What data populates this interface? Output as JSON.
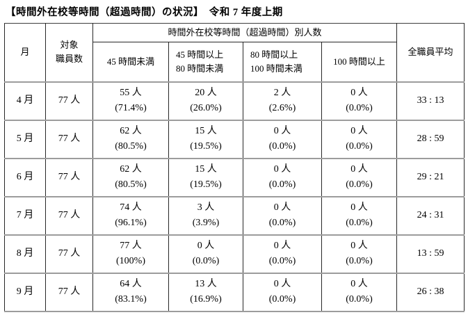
{
  "title": "【時間外在校等時間（超過時間）の状況】　令和 7 年度上期",
  "colors": {
    "background": "#ffffff",
    "text": "#000000",
    "border_vertical": "#262626",
    "border_horizontal": "#9c9c9c"
  },
  "table": {
    "header": {
      "month": "月",
      "staff_line1": "対象",
      "staff_line2": "職員数",
      "band_group": "時間外在校等時間（超過時間）別人数",
      "band1": "45 時間未満",
      "band2_line1": "45 時間以上",
      "band2_line2": "80 時間未満",
      "band3_line1": "80 時間以上",
      "band3_line2": "100 時間未満",
      "band4": "100 時間以上",
      "average": "全職員平均"
    },
    "rows": [
      {
        "month": "4 月",
        "staff": "77 人",
        "bands": [
          {
            "count": "55 人",
            "pct": "(71.4%)"
          },
          {
            "count": "20 人",
            "pct": "(26.0%)"
          },
          {
            "count": "2 人",
            "pct": "(2.6%)"
          },
          {
            "count": "0 人",
            "pct": "(0.0%)"
          }
        ],
        "avg": "33 : 13"
      },
      {
        "month": "5 月",
        "staff": "77 人",
        "bands": [
          {
            "count": "62 人",
            "pct": "(80.5%)"
          },
          {
            "count": "15 人",
            "pct": "(19.5%)"
          },
          {
            "count": "0 人",
            "pct": "(0.0%)"
          },
          {
            "count": "0 人",
            "pct": "(0.0%)"
          }
        ],
        "avg": "28 : 59"
      },
      {
        "month": "6 月",
        "staff": "77 人",
        "bands": [
          {
            "count": "62 人",
            "pct": "(80.5%)"
          },
          {
            "count": "15 人",
            "pct": "(19.5%)"
          },
          {
            "count": "0 人",
            "pct": "(0.0%)"
          },
          {
            "count": "0 人",
            "pct": "(0.0%)"
          }
        ],
        "avg": "29 : 21"
      },
      {
        "month": "7 月",
        "staff": "77 人",
        "bands": [
          {
            "count": "74 人",
            "pct": "(96.1%)"
          },
          {
            "count": "3 人",
            "pct": "(3.9%)"
          },
          {
            "count": "0 人",
            "pct": "(0.0%)"
          },
          {
            "count": "0 人",
            "pct": "(0.0%)"
          }
        ],
        "avg": "24 : 31"
      },
      {
        "month": "8 月",
        "staff": "77 人",
        "bands": [
          {
            "count": "77 人",
            "pct": "(100%)"
          },
          {
            "count": "0 人",
            "pct": "(0.0%)"
          },
          {
            "count": "0 人",
            "pct": "(0.0%)"
          },
          {
            "count": "0 人",
            "pct": "(0.0%)"
          }
        ],
        "avg": "13 : 59"
      },
      {
        "month": "9 月",
        "staff": "77 人",
        "bands": [
          {
            "count": "64 人",
            "pct": "(83.1%)"
          },
          {
            "count": "13 人",
            "pct": "(16.9%)"
          },
          {
            "count": "0 人",
            "pct": "(0.0%)"
          },
          {
            "count": "0 人",
            "pct": "(0.0%)"
          }
        ],
        "avg": "26 : 38"
      }
    ]
  }
}
